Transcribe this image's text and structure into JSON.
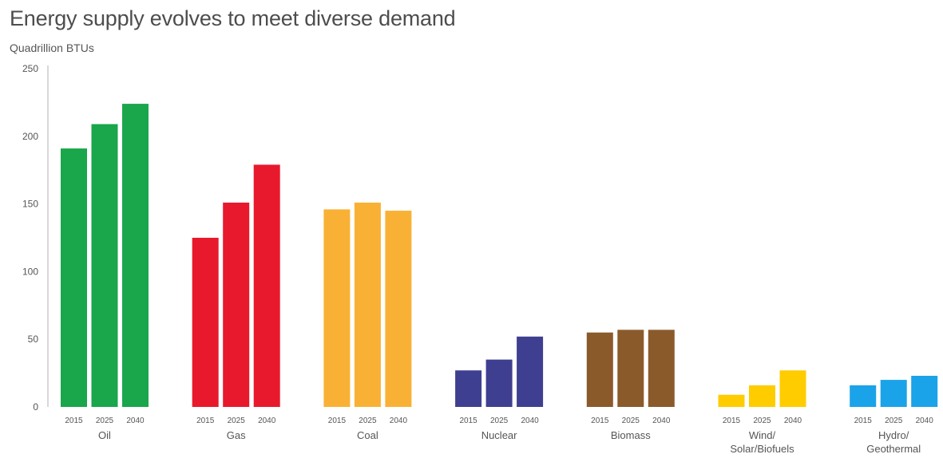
{
  "chart_data": {
    "type": "bar",
    "title": "Energy supply evolves to meet diverse demand",
    "subtitle": "Quadrillion BTUs",
    "xlabel": "",
    "ylabel": "",
    "ylim": [
      0,
      250
    ],
    "yticks": [
      0,
      50,
      100,
      150,
      200,
      250
    ],
    "grid": false,
    "legend": "none",
    "years": [
      "2015",
      "2025",
      "2040"
    ],
    "groups": [
      {
        "label_lines": [
          "Oil"
        ],
        "color": "#1aa64b",
        "values": [
          191,
          209,
          224
        ]
      },
      {
        "label_lines": [
          "Gas"
        ],
        "color": "#e8192c",
        "values": [
          125,
          151,
          179
        ]
      },
      {
        "label_lines": [
          "Coal"
        ],
        "color": "#f9b135",
        "values": [
          146,
          151,
          145
        ]
      },
      {
        "label_lines": [
          "Nuclear"
        ],
        "color": "#3f3f91",
        "values": [
          27,
          35,
          52
        ]
      },
      {
        "label_lines": [
          "Biomass"
        ],
        "color": "#8b5a2b",
        "values": [
          55,
          57,
          57
        ]
      },
      {
        "label_lines": [
          "Wind/",
          "Solar/Biofuels"
        ],
        "color": "#ffcc00",
        "values": [
          9,
          16,
          27
        ]
      },
      {
        "label_lines": [
          "Hydro/",
          "Geothermal"
        ],
        "color": "#1aa3e8",
        "values": [
          16,
          20,
          23
        ]
      }
    ]
  }
}
